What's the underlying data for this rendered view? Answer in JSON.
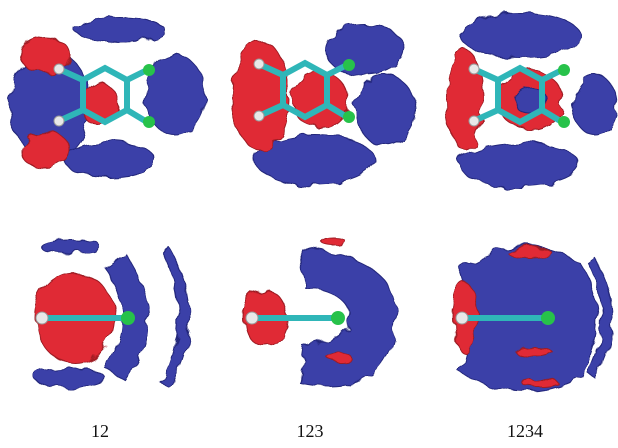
{
  "panels": [
    {
      "label": "12"
    },
    {
      "label": "123"
    },
    {
      "label": "1234"
    }
  ]
}
